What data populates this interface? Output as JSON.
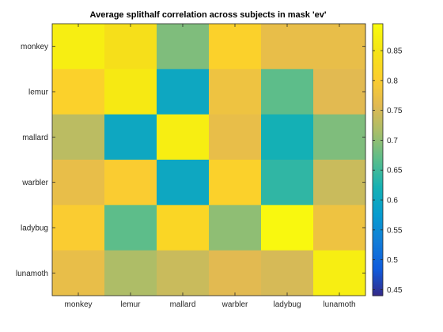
{
  "chart_data": {
    "type": "heatmap",
    "title": "Average splithalf correlation across subjects in mask 'ev'",
    "xlabel": "",
    "ylabel": "",
    "x_categories": [
      "monkey",
      "lemur",
      "mallard",
      "warbler",
      "ladybug",
      "lunamoth"
    ],
    "y_categories": [
      "monkey",
      "lemur",
      "mallard",
      "warbler",
      "ladybug",
      "lunamoth"
    ],
    "values": [
      [
        0.87,
        0.84,
        0.69,
        0.81,
        0.77,
        0.77
      ],
      [
        0.81,
        0.86,
        0.6,
        0.78,
        0.67,
        0.76
      ],
      [
        0.73,
        0.6,
        0.87,
        0.77,
        0.62,
        0.69
      ],
      [
        0.77,
        0.8,
        0.6,
        0.81,
        0.64,
        0.74
      ],
      [
        0.8,
        0.67,
        0.82,
        0.7,
        0.89,
        0.78
      ],
      [
        0.77,
        0.72,
        0.74,
        0.76,
        0.75,
        0.87
      ]
    ],
    "clim": [
      0.44,
      0.895
    ],
    "colorbar": {
      "ticks": [
        0.45,
        0.5,
        0.55,
        0.6,
        0.65,
        0.7,
        0.75,
        0.8,
        0.85
      ],
      "tick_labels": [
        "0.45",
        "0.5",
        "0.55",
        "0.6",
        "0.65",
        "0.7",
        "0.75",
        "0.8",
        "0.85"
      ],
      "colormap": "parula"
    }
  }
}
